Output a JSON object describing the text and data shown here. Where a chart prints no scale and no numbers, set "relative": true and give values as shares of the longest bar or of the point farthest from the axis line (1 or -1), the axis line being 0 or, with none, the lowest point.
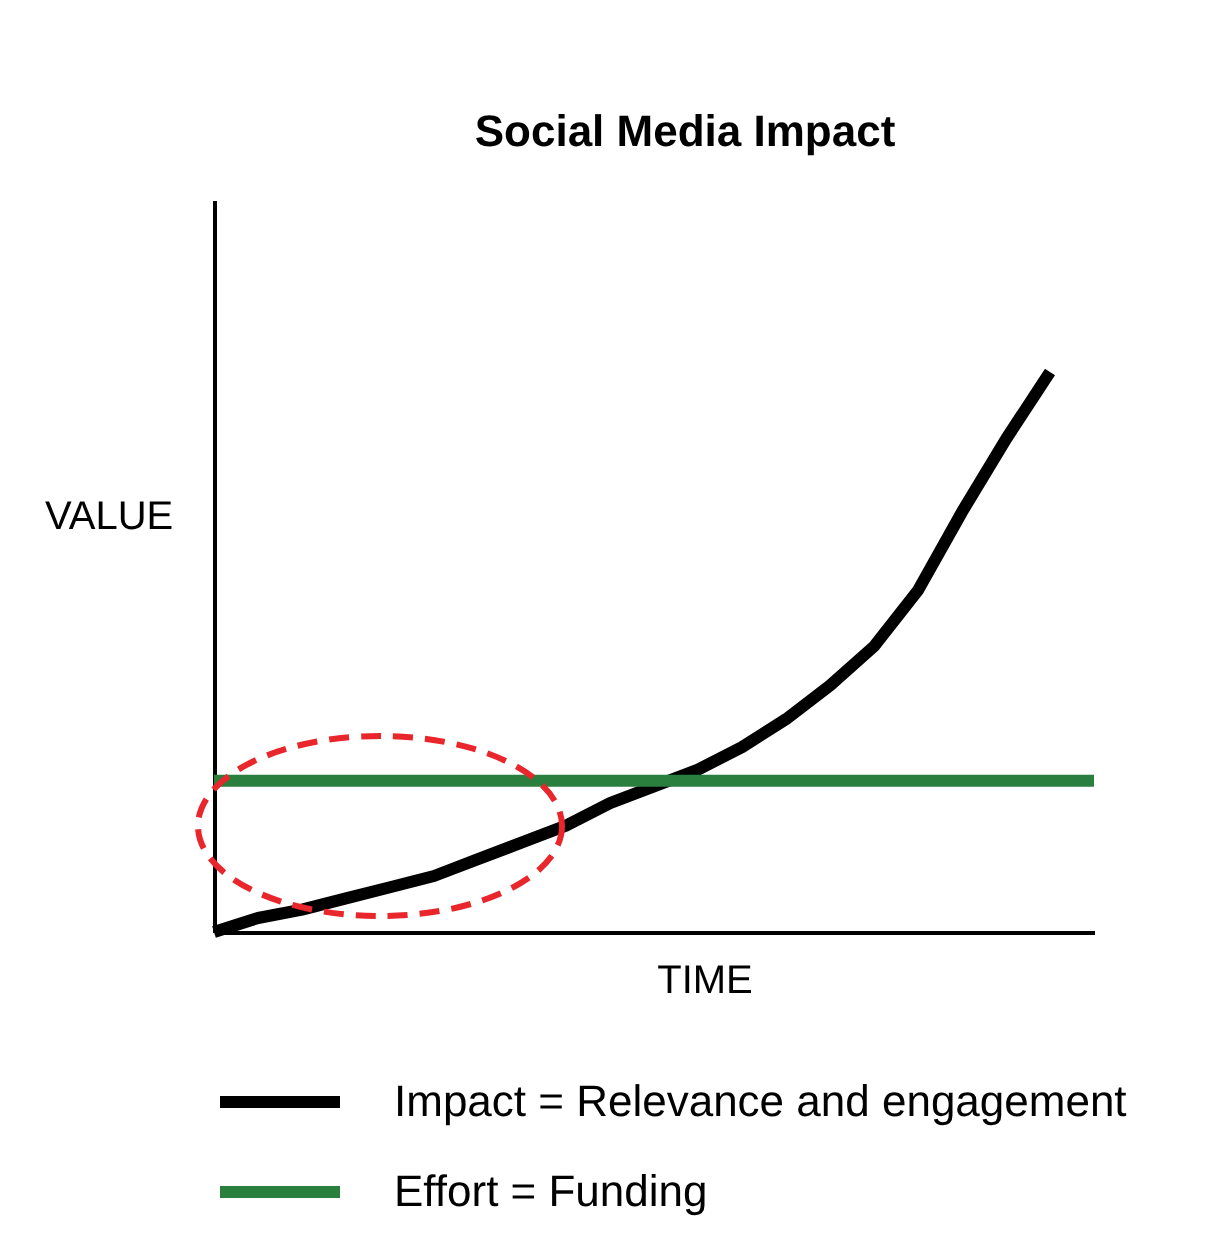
{
  "chart_data": {
    "type": "line",
    "title": "Social Media Impact",
    "xlabel": "TIME",
    "ylabel": "VALUE",
    "relative": true,
    "legend": "bottom",
    "line_style": "solid",
    "categories": [
      null,
      null,
      null,
      null,
      null,
      null,
      null,
      null,
      null,
      null,
      null,
      null,
      null,
      null,
      null,
      null,
      null,
      null,
      null,
      null,
      null
    ],
    "series": [
      {
        "name": "Impact = Relevance and engagement",
        "color": "#000000",
        "values": [
          0.0,
          0.025,
          0.04,
          0.06,
          0.08,
          0.1,
          0.13,
          0.16,
          0.19,
          0.23,
          0.26,
          0.29,
          0.33,
          0.38,
          0.44,
          0.51,
          0.61,
          0.75,
          0.88,
          1.0,
          null
        ]
      },
      {
        "name": "Effort = Funding",
        "color": "#2a7f3e",
        "values": [
          0.27,
          0.27,
          0.27,
          0.27,
          0.27,
          0.27,
          0.27,
          0.27,
          0.27,
          0.27,
          0.27,
          0.27,
          0.27,
          0.27,
          0.27,
          0.27,
          0.27,
          0.27,
          0.27,
          0.27,
          0.27
        ]
      }
    ]
  }
}
